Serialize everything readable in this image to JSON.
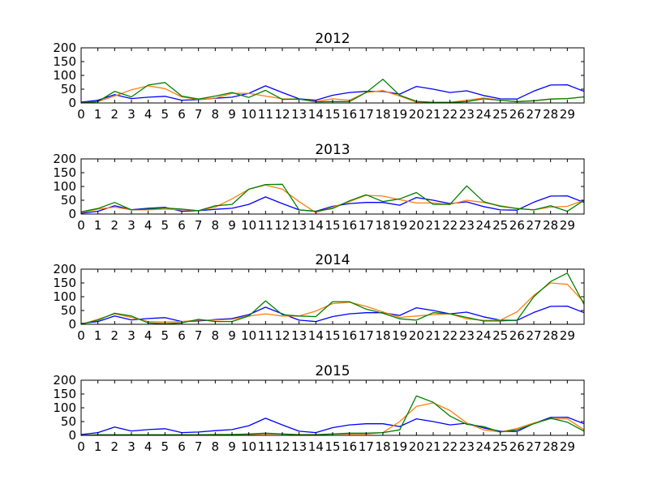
{
  "chart_data": [
    {
      "type": "line",
      "title": "2012",
      "x": [
        0,
        1,
        2,
        3,
        4,
        5,
        6,
        7,
        8,
        9,
        10,
        11,
        12,
        13,
        14,
        15,
        16,
        17,
        18,
        19,
        20,
        21,
        22,
        23,
        24,
        25,
        26,
        27,
        28,
        29,
        30
      ],
      "xticks": [
        "0",
        "1",
        "2",
        "3",
        "4",
        "5",
        "6",
        "7",
        "8",
        "9",
        "10",
        "11",
        "12",
        "13",
        "14",
        "15",
        "16",
        "17",
        "18",
        "19",
        "20",
        "21",
        "22",
        "23",
        "24",
        "25",
        "26",
        "27",
        "28",
        "29"
      ],
      "ylim": [
        0,
        200
      ],
      "yticks": [
        "0",
        "50",
        "100",
        "150",
        "200"
      ],
      "series": [
        {
          "color": "#0000ff",
          "values": [
            3,
            10,
            30,
            16,
            21,
            24,
            10,
            12,
            17,
            21,
            35,
            62,
            38,
            15,
            10,
            28,
            38,
            42,
            42,
            32,
            60,
            50,
            38,
            44,
            27,
            15,
            14,
            43,
            65,
            66,
            42
          ]
        },
        {
          "color": "#ff7f0e",
          "values": [
            0,
            5,
            25,
            48,
            62,
            52,
            22,
            12,
            18,
            35,
            35,
            25,
            15,
            14,
            5,
            15,
            10,
            38,
            45,
            25,
            3,
            2,
            2,
            10,
            18,
            10,
            5,
            8,
            14,
            16,
            22
          ]
        },
        {
          "color": "#008000",
          "values": [
            0,
            5,
            42,
            22,
            65,
            74,
            25,
            14,
            25,
            38,
            20,
            46,
            13,
            14,
            4,
            5,
            5,
            38,
            86,
            28,
            6,
            2,
            2,
            5,
            15,
            10,
            5,
            8,
            14,
            16,
            22
          ]
        }
      ]
    },
    {
      "type": "line",
      "title": "2013",
      "x": [
        0,
        1,
        2,
        3,
        4,
        5,
        6,
        7,
        8,
        9,
        10,
        11,
        12,
        13,
        14,
        15,
        16,
        17,
        18,
        19,
        20,
        21,
        22,
        23,
        24,
        25,
        26,
        27,
        28,
        29,
        30
      ],
      "xticks": [
        "0",
        "1",
        "2",
        "3",
        "4",
        "5",
        "6",
        "7",
        "8",
        "9",
        "10",
        "11",
        "12",
        "13",
        "14",
        "15",
        "16",
        "17",
        "18",
        "19",
        "20",
        "21",
        "22",
        "23",
        "24",
        "25",
        "26",
        "27",
        "28",
        "29"
      ],
      "ylim": [
        0,
        200
      ],
      "yticks": [
        "0",
        "50",
        "100",
        "150",
        "200"
      ],
      "series": [
        {
          "color": "#0000ff",
          "values": [
            3,
            10,
            30,
            16,
            21,
            24,
            10,
            12,
            17,
            21,
            35,
            62,
            38,
            15,
            10,
            28,
            38,
            42,
            42,
            32,
            60,
            50,
            38,
            44,
            27,
            15,
            14,
            43,
            65,
            66,
            42
          ]
        },
        {
          "color": "#ff7f0e",
          "values": [
            5,
            18,
            25,
            15,
            15,
            18,
            15,
            12,
            25,
            55,
            90,
            105,
            90,
            45,
            5,
            25,
            45,
            68,
            65,
            52,
            40,
            40,
            35,
            50,
            42,
            30,
            20,
            15,
            25,
            28,
            50
          ]
        },
        {
          "color": "#008000",
          "values": [
            8,
            20,
            42,
            15,
            18,
            22,
            18,
            12,
            30,
            35,
            90,
            107,
            108,
            15,
            10,
            20,
            48,
            70,
            45,
            55,
            78,
            35,
            35,
            102,
            45,
            28,
            20,
            15,
            30,
            10,
            50
          ]
        }
      ]
    },
    {
      "type": "line",
      "title": "2014",
      "x": [
        0,
        1,
        2,
        3,
        4,
        5,
        6,
        7,
        8,
        9,
        10,
        11,
        12,
        13,
        14,
        15,
        16,
        17,
        18,
        19,
        20,
        21,
        22,
        23,
        24,
        25,
        26,
        27,
        28,
        29,
        30
      ],
      "xticks": [
        "0",
        "1",
        "2",
        "3",
        "4",
        "5",
        "6",
        "7",
        "8",
        "9",
        "10",
        "11",
        "12",
        "13",
        "14",
        "15",
        "16",
        "17",
        "18",
        "19",
        "20",
        "21",
        "22",
        "23",
        "24",
        "25",
        "26",
        "27",
        "28",
        "29"
      ],
      "ylim": [
        0,
        200
      ],
      "yticks": [
        "0",
        "50",
        "100",
        "150",
        "200"
      ],
      "series": [
        {
          "color": "#0000ff",
          "values": [
            3,
            10,
            30,
            16,
            21,
            24,
            10,
            12,
            17,
            21,
            35,
            62,
            38,
            15,
            10,
            28,
            38,
            42,
            42,
            32,
            60,
            50,
            38,
            44,
            27,
            15,
            14,
            43,
            65,
            66,
            42
          ]
        },
        {
          "color": "#ff7f0e",
          "values": [
            0,
            18,
            38,
            25,
            10,
            8,
            10,
            15,
            15,
            18,
            30,
            38,
            30,
            30,
            48,
            75,
            80,
            65,
            45,
            25,
            30,
            35,
            38,
            20,
            14,
            15,
            45,
            105,
            150,
            145,
            80
          ]
        },
        {
          "color": "#008000",
          "values": [
            0,
            15,
            40,
            30,
            5,
            2,
            5,
            18,
            10,
            10,
            30,
            85,
            35,
            30,
            28,
            82,
            82,
            55,
            40,
            20,
            15,
            42,
            38,
            25,
            12,
            12,
            15,
            100,
            155,
            186,
            72
          ]
        }
      ]
    },
    {
      "type": "line",
      "title": "2015",
      "x": [
        0,
        1,
        2,
        3,
        4,
        5,
        6,
        7,
        8,
        9,
        10,
        11,
        12,
        13,
        14,
        15,
        16,
        17,
        18,
        19,
        20,
        21,
        22,
        23,
        24,
        25,
        26,
        27,
        28,
        29,
        30
      ],
      "xticks": [
        "0",
        "1",
        "2",
        "3",
        "4",
        "5",
        "6",
        "7",
        "8",
        "9",
        "10",
        "11",
        "12",
        "13",
        "14",
        "15",
        "16",
        "17",
        "18",
        "19",
        "20",
        "21",
        "22",
        "23",
        "24",
        "25",
        "26",
        "27",
        "28",
        "29"
      ],
      "ylim": [
        0,
        200
      ],
      "yticks": [
        "0",
        "50",
        "100",
        "150",
        "200"
      ],
      "series": [
        {
          "color": "#0000ff",
          "values": [
            3,
            10,
            30,
            16,
            21,
            24,
            10,
            12,
            17,
            21,
            35,
            62,
            38,
            15,
            10,
            28,
            38,
            42,
            42,
            32,
            60,
            50,
            38,
            44,
            27,
            15,
            14,
            43,
            65,
            66,
            42
          ]
        },
        {
          "color": "#ff7f0e",
          "values": [
            0,
            2,
            2,
            2,
            2,
            2,
            2,
            2,
            3,
            3,
            3,
            5,
            5,
            3,
            3,
            5,
            5,
            5,
            10,
            50,
            105,
            118,
            90,
            45,
            20,
            12,
            25,
            45,
            60,
            60,
            20
          ]
        },
        {
          "color": "#008000",
          "values": [
            0,
            2,
            2,
            2,
            2,
            2,
            2,
            2,
            3,
            3,
            5,
            8,
            5,
            2,
            2,
            5,
            8,
            8,
            10,
            20,
            143,
            120,
            70,
            40,
            32,
            12,
            20,
            42,
            62,
            48,
            15
          ]
        }
      ]
    }
  ]
}
